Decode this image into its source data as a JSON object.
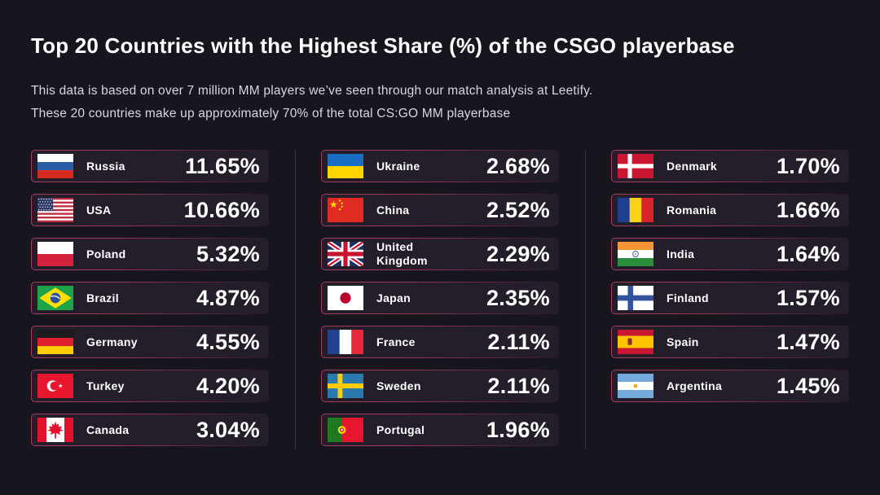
{
  "header": {
    "title": "Top 20 Countries with the Highest Share (%) of the CSGO playerbase",
    "subtitle_line1": "This data is based on over 7 million MM players we’ve seen through our match analysis at Leetify.",
    "subtitle_line2": "These 20 countries make up approximately 70% of the total CS:GO MM playerbase"
  },
  "colors": {
    "background": "#17151E",
    "card_background": "#241E2B",
    "card_border_accent": "#C24368",
    "divider": "#37333F",
    "title_text": "#FFFFFF",
    "subtitle_text": "#D9D6DF",
    "value_text": "#FFFFFF"
  },
  "chart_data": {
    "type": "table",
    "title": "Top 20 Countries with the Highest Share (%) of the CSGO playerbase",
    "unit": "% of CS:GO MM playerbase",
    "entries": [
      {
        "country": "Russia",
        "code": "ru",
        "share_pct": 11.65,
        "share_label": "11.65%"
      },
      {
        "country": "USA",
        "code": "us",
        "share_pct": 10.66,
        "share_label": "10.66%"
      },
      {
        "country": "Poland",
        "code": "pl",
        "share_pct": 5.32,
        "share_label": "5.32%"
      },
      {
        "country": "Brazil",
        "code": "br",
        "share_pct": 4.87,
        "share_label": "4.87%"
      },
      {
        "country": "Germany",
        "code": "de",
        "share_pct": 4.55,
        "share_label": "4.55%"
      },
      {
        "country": "Turkey",
        "code": "tr",
        "share_pct": 4.2,
        "share_label": "4.20%"
      },
      {
        "country": "Canada",
        "code": "ca",
        "share_pct": 3.04,
        "share_label": "3.04%"
      },
      {
        "country": "Ukraine",
        "code": "ua",
        "share_pct": 2.68,
        "share_label": "2.68%"
      },
      {
        "country": "China",
        "code": "cn",
        "share_pct": 2.52,
        "share_label": "2.52%"
      },
      {
        "country": "United Kingdom",
        "code": "gb",
        "share_pct": 2.29,
        "share_label": "2.29%"
      },
      {
        "country": "Japan",
        "code": "jp",
        "share_pct": 2.35,
        "share_label": "2.35%"
      },
      {
        "country": "France",
        "code": "fr",
        "share_pct": 2.11,
        "share_label": "2.11%"
      },
      {
        "country": "Sweden",
        "code": "se",
        "share_pct": 2.11,
        "share_label": "2.11%"
      },
      {
        "country": "Portugal",
        "code": "pt",
        "share_pct": 1.96,
        "share_label": "1.96%"
      },
      {
        "country": "Denmark",
        "code": "dk",
        "share_pct": 1.7,
        "share_label": "1.70%"
      },
      {
        "country": "Romania",
        "code": "ro",
        "share_pct": 1.66,
        "share_label": "1.66%"
      },
      {
        "country": "India",
        "code": "in",
        "share_pct": 1.64,
        "share_label": "1.64%"
      },
      {
        "country": "Finland",
        "code": "fi",
        "share_pct": 1.57,
        "share_label": "1.57%"
      },
      {
        "country": "Spain",
        "code": "es",
        "share_pct": 1.47,
        "share_label": "1.47%"
      },
      {
        "country": "Argentina",
        "code": "ar",
        "share_pct": 1.45,
        "share_label": "1.45%"
      }
    ],
    "layout": {
      "column_sizes": [
        7,
        7,
        6
      ],
      "legend": "none",
      "grid": "off"
    }
  }
}
